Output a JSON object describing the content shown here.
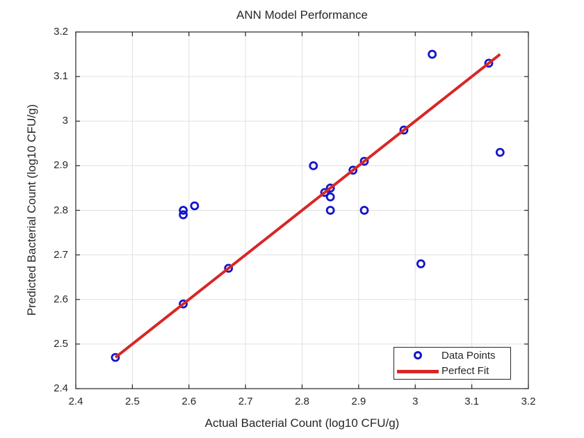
{
  "chart_data": {
    "type": "scatter",
    "title": "ANN Model Performance",
    "xlabel": "Actual Bacterial Count (log10 CFU/g)",
    "ylabel": "Predicted Bacterial Count (log10 CFU/g)",
    "xlim": [
      2.4,
      3.2
    ],
    "ylim": [
      2.4,
      3.2
    ],
    "xtick_values": [
      2.4,
      2.5,
      2.6,
      2.7,
      2.8,
      2.9,
      3.0,
      3.1,
      3.2
    ],
    "xtick_labels": [
      "2.4",
      "2.5",
      "2.6",
      "2.7",
      "2.8",
      "2.9",
      "3",
      "3.1",
      "3.2"
    ],
    "ytick_values": [
      2.4,
      2.5,
      2.6,
      2.7,
      2.8,
      2.9,
      3.0,
      3.1,
      3.2
    ],
    "ytick_labels": [
      "2.4",
      "2.5",
      "2.6",
      "2.7",
      "2.8",
      "2.9",
      "3",
      "3.1",
      "3.2"
    ],
    "grid": true,
    "legend": {
      "position": "bottom-right",
      "entries": [
        "Data Points",
        "Perfect Fit"
      ]
    },
    "colors": {
      "data_points": "#1414CC",
      "perfect_fit": "#D92626",
      "grid": "#E0E0E0",
      "axis": "#262626",
      "background": "#FFFFFF"
    },
    "series": [
      {
        "name": "Data Points",
        "type": "scatter",
        "color": "#1414CC",
        "points": [
          [
            2.47,
            2.47
          ],
          [
            2.59,
            2.59
          ],
          [
            2.59,
            2.79
          ],
          [
            2.59,
            2.8
          ],
          [
            2.61,
            2.81
          ],
          [
            2.67,
            2.67
          ],
          [
            2.82,
            2.9
          ],
          [
            2.84,
            2.84
          ],
          [
            2.85,
            2.8
          ],
          [
            2.85,
            2.83
          ],
          [
            2.85,
            2.85
          ],
          [
            2.89,
            2.89
          ],
          [
            2.91,
            2.8
          ],
          [
            2.91,
            2.91
          ],
          [
            2.98,
            2.98
          ],
          [
            3.01,
            2.68
          ],
          [
            3.03,
            3.15
          ],
          [
            3.13,
            3.13
          ],
          [
            3.15,
            2.93
          ]
        ]
      },
      {
        "name": "Perfect Fit",
        "type": "line",
        "color": "#D92626",
        "points": [
          [
            2.47,
            2.47
          ],
          [
            3.15,
            3.15
          ]
        ]
      }
    ]
  }
}
